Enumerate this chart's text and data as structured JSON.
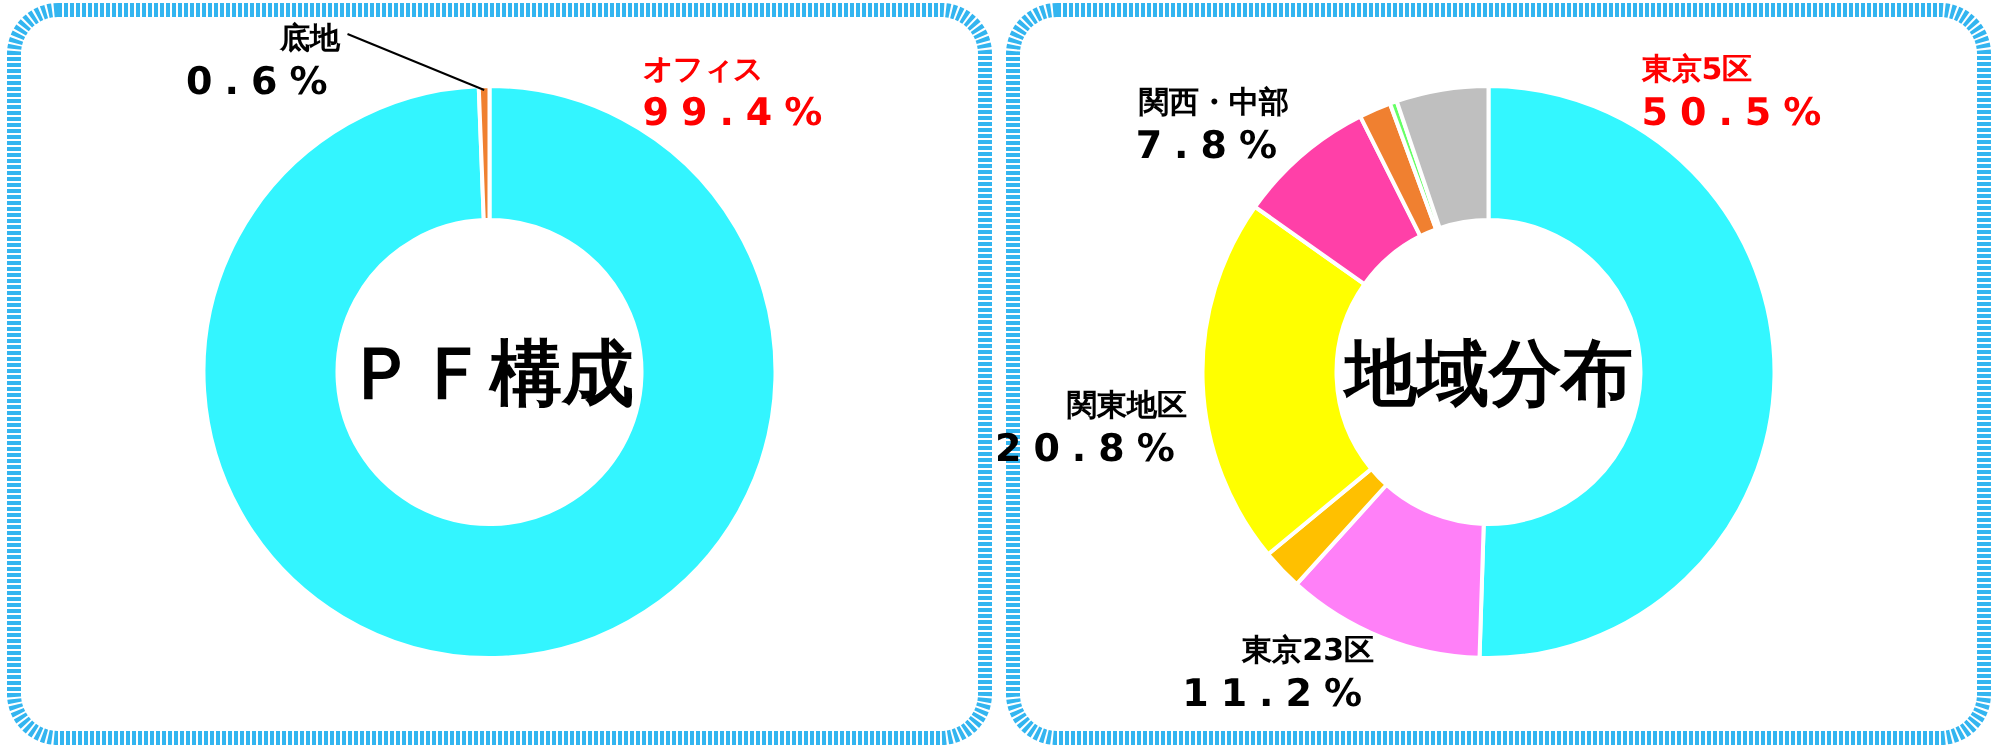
{
  "chart_data": [
    {
      "type": "donut",
      "title": "ＰＦ構成",
      "categories": [
        "オフィス",
        "底地"
      ],
      "values": [
        99.4,
        0.6
      ],
      "colors": [
        "#33f5ff",
        "#f08030"
      ],
      "value_labels": [
        "99.4%",
        "0.6%"
      ]
    },
    {
      "type": "donut",
      "title": "地域分布",
      "categories": [
        "東京5区",
        "東京23区",
        null,
        "関東地区",
        "関西・中部",
        null,
        null,
        null
      ],
      "values": [
        50.5,
        11.2,
        2.3,
        20.8,
        7.8,
        1.8,
        0.4,
        5.2
      ],
      "colors": [
        "#33f7ff",
        "#ff80f8",
        "#ffc000",
        "#ffff00",
        "#ff40a8",
        "#f08030",
        "#66ff66",
        "#bfbfbf"
      ],
      "value_labels": [
        "50.5%",
        "11.2%",
        null,
        "20.8%",
        "7.8%",
        null,
        null,
        null
      ]
    }
  ]
}
